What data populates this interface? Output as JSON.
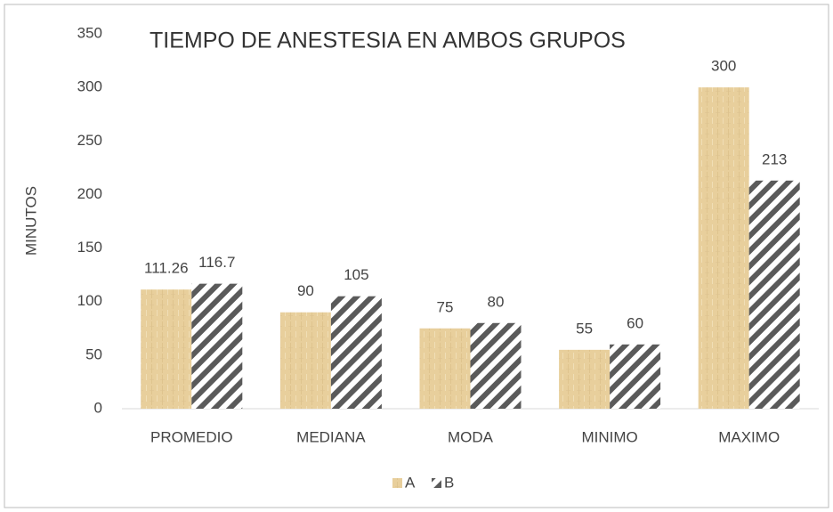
{
  "chart_data": {
    "type": "bar",
    "title": "TIEMPO DE ANESTESIA EN AMBOS GRUPOS",
    "y_label": "MINUTOS",
    "categories": [
      "PROMEDIO",
      "MEDIANA",
      "MODA",
      "MINIMO",
      "MAXIMO"
    ],
    "series": [
      {
        "name": "A",
        "color": "#e8cf9c",
        "pattern": "texture",
        "values": [
          111.26,
          90,
          75,
          55,
          300
        ]
      },
      {
        "name": "B",
        "color": "#5a5a5a",
        "pattern": "hatch",
        "values": [
          116.7,
          105,
          80,
          60,
          213
        ]
      }
    ],
    "ylim": [
      0,
      350
    ],
    "yticks": [
      0,
      50,
      100,
      150,
      200,
      250,
      300,
      350
    ],
    "grid": false,
    "legend": "bottom"
  }
}
